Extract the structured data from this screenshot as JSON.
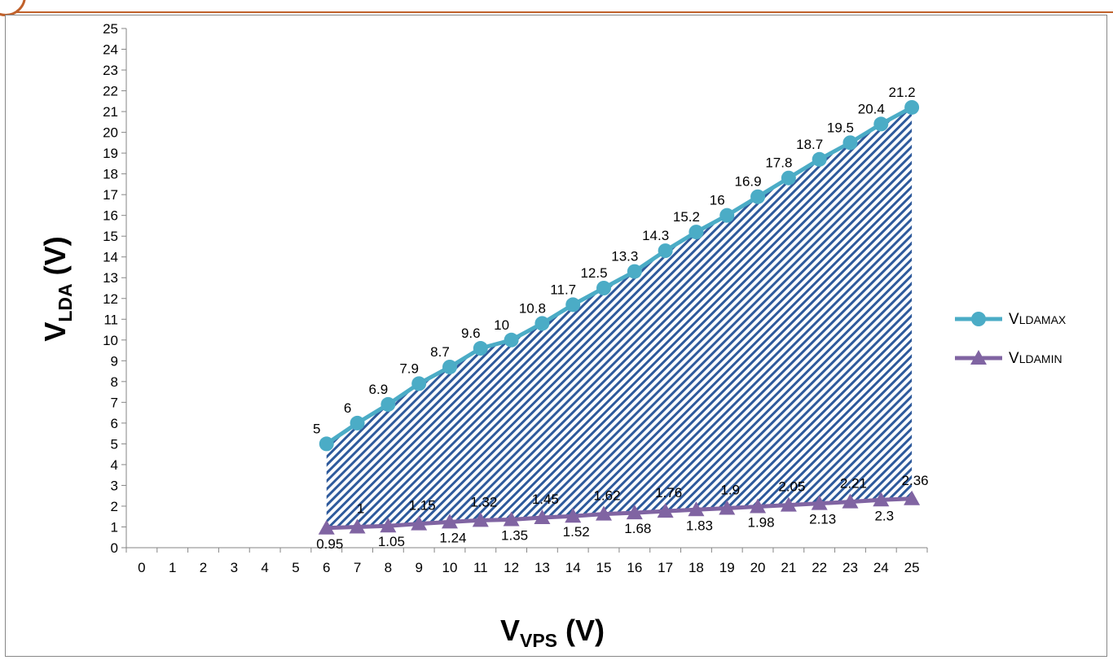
{
  "colors": {
    "max_series": "#4bacc6",
    "min_series": "#8064a2",
    "hatch": "#2e5a9c",
    "axis": "#868686",
    "accent_border": "#c0612b"
  },
  "chart_data": {
    "type": "line",
    "x_title": {
      "main": "V",
      "sub": "VPS",
      "tail": " (V)"
    },
    "y_title": {
      "main": "V",
      "sub": "LDA",
      "tail": " (V)"
    },
    "xlim": [
      0,
      25
    ],
    "ylim": [
      0,
      25
    ],
    "x_ticks": [
      "0",
      "1",
      "2",
      "3",
      "4",
      "5",
      "6",
      "7",
      "8",
      "9",
      "10",
      "11",
      "12",
      "13",
      "14",
      "15",
      "16",
      "17",
      "18",
      "19",
      "20",
      "21",
      "22",
      "23",
      "24",
      "25"
    ],
    "y_ticks": [
      "0",
      "1",
      "2",
      "3",
      "4",
      "5",
      "6",
      "7",
      "8",
      "9",
      "10",
      "11",
      "12",
      "13",
      "14",
      "15",
      "16",
      "17",
      "18",
      "19",
      "20",
      "21",
      "22",
      "23",
      "24",
      "25"
    ],
    "grid": false,
    "legend_position": "right",
    "area_between_series": "hatched",
    "x": [
      6,
      7,
      8,
      9,
      10,
      11,
      12,
      13,
      14,
      15,
      16,
      17,
      18,
      19,
      20,
      21,
      22,
      23,
      24,
      25
    ],
    "series": [
      {
        "name": "V",
        "name_sub": "LDAMAX",
        "marker": "circle",
        "values": [
          5,
          6,
          6.9,
          7.9,
          8.7,
          9.6,
          10,
          10.8,
          11.7,
          12.5,
          13.3,
          14.3,
          15.2,
          16,
          16.9,
          17.8,
          18.7,
          19.5,
          20.4,
          21.2
        ],
        "labels": [
          "5",
          "6",
          "6.9",
          "7.9",
          "8.7",
          "9.6",
          "10",
          "10.8",
          "11.7",
          "12.5",
          "13.3",
          "14.3",
          "15.2",
          "16",
          "16.9",
          "17.8",
          "18.7",
          "19.5",
          "20.4",
          "21.2"
        ]
      },
      {
        "name": "V",
        "name_sub": "LDAMIN",
        "marker": "triangle",
        "values": [
          0.95,
          1,
          1.05,
          1.15,
          1.24,
          1.32,
          1.35,
          1.45,
          1.52,
          1.62,
          1.68,
          1.76,
          1.83,
          1.9,
          1.98,
          2.05,
          2.13,
          2.21,
          2.3,
          2.36
        ],
        "labels": [
          "0.95",
          "1",
          "1.05",
          "1.15",
          "1.24",
          "1.32",
          "1.35",
          "1.45",
          "1.52",
          "1.62",
          "1.68",
          "1.76",
          "1.83",
          "1.9",
          "1.98",
          "2.05",
          "2.13",
          "2.21",
          "2.3",
          "2.36"
        ]
      }
    ]
  }
}
